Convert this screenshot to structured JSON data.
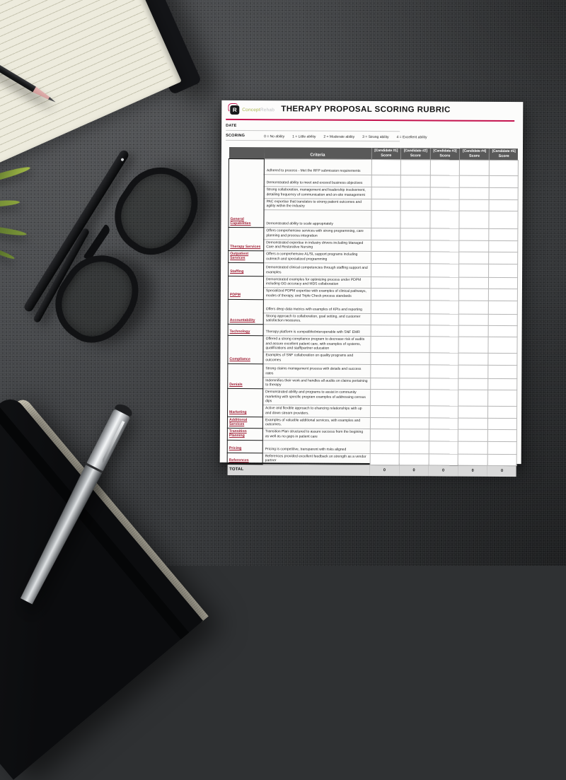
{
  "document": {
    "logo": {
      "letter": "R",
      "brand_concept": "Concept",
      "brand_rehab": "Rehab"
    },
    "title": "THERAPY PROPOSAL SCORING RUBRIC",
    "date_label": "DATE",
    "scoring_label": "SCORING",
    "scoring_scale": [
      "0 = No ability",
      "1 = Little ability",
      "2 = Moderate ability",
      "3 = Strong ability",
      "4 = Excellent ability"
    ],
    "colors": {
      "accent_rule": "#c4134e",
      "category_red": "#9e1b32",
      "header_gray": "#595959",
      "total_gray": "#d9d9d9",
      "brand_green": "#a9b54a"
    },
    "table": {
      "criteria_header": "Criteria",
      "candidate_headers": [
        "[Candidate #1]",
        "[Candidate #2]",
        "[Candidate #3]",
        "[Candidate #4]",
        "[Candidate #5]"
      ],
      "score_label": "Score",
      "groups": [
        {
          "category": "General Capabilities",
          "rows": [
            "Adhered to process - Met the RFP submission requirements",
            "Demonstrated ability to meet and exceed business objectives",
            "Strong collaboration, management and leadership involvement, detailing frequency of communication and on-site management",
            "PAC expertise that translates to strong patient outcomes and agility within the industry",
            "Demonstrated ability to scale appropriately"
          ]
        },
        {
          "category": "Therapy Services",
          "rows": [
            "Offers comprehensive services with strong programming, care planning and process integration",
            "Demonstrated expertise in industry drivers including Managed Care and Restorative Nursing"
          ]
        },
        {
          "category": "Outpatient Services",
          "rows": [
            "Offers a comprehensive AL/SL support programs including outreach and specialized programming"
          ]
        },
        {
          "category": "Staffing",
          "rows": [
            "Demonstrated clinical competencies through staffing support and examples"
          ]
        },
        {
          "category": "PDPM",
          "rows": [
            "Demonstrated examples for optimizing process under PDPM including GG accuracy and MDS collaboration",
            "Specialized PDPM expertise with examples of clinical pathways, modes of therapy, and Triple Check process standards"
          ]
        },
        {
          "category": "Accountability",
          "rows": [
            "Offers deep data metrics with examples of KPIs and reporting",
            "Strong approach to collaboration, goal setting, and customer satisfaction measures."
          ]
        },
        {
          "category": "Technology",
          "rows": [
            "Therapy platform is compatible/interoperable with SNF EMR"
          ]
        },
        {
          "category": "Compliance",
          "rows": [
            "Offered a strong compliance program to decrease risk of audits and assure excellent patient care, with examples of systems, qualifications and staff/partner education",
            "Examples of SNF collaboration on quality programs and outcomes"
          ]
        },
        {
          "category": "Denials",
          "rows": [
            "Strong claims management process with details and success rates",
            "Indemnifies their work and handles all audits on claims pertaining to therapy"
          ]
        },
        {
          "category": "Marketing",
          "rows": [
            "Demonstrated ability and programs to assist in community marketing with specific program examples of addressing census dips",
            "Active and flexible approach to ehancing relationships with up and down stream providers."
          ]
        },
        {
          "category": "Additional Services",
          "rows": [
            "Examples of valuable additional services, with examples and outcomes."
          ]
        },
        {
          "category": "Transition Planning",
          "rows": [
            "Transition Plan structured to assure success from the begining as well as no gaps in patient care"
          ]
        },
        {
          "category": "Pricing",
          "rows": [
            "Pricing is competitive, transparent with risks aligned"
          ]
        },
        {
          "category": "References",
          "rows": [
            "References provided excellent feedback on strength as a vendor partner"
          ]
        }
      ],
      "total_label": "TOTAL",
      "totals": [
        "0",
        "0",
        "0",
        "0",
        "0"
      ]
    }
  }
}
